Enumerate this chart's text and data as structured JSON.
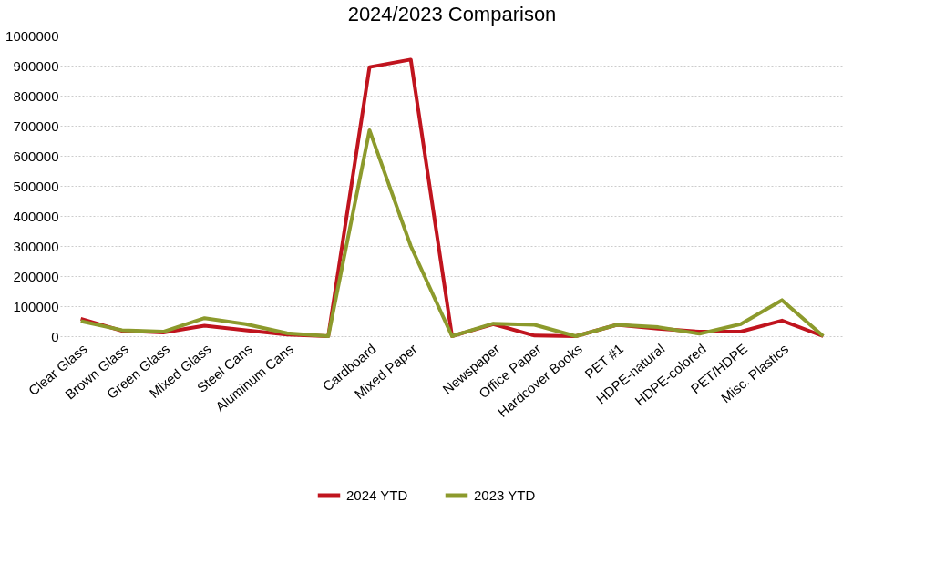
{
  "chart_data": {
    "type": "line",
    "title": "2024/2023 Comparison",
    "categories": [
      "Clear Glass",
      "Brown Glass",
      "Green Glass",
      "Mixed Glass",
      "Steel Cans",
      "Aluminum Cans",
      null,
      "Cardboard",
      "Mixed Paper",
      null,
      "Newspaper",
      "Office Paper",
      "Hardcover Books",
      "PET #1",
      "HDPE-natural",
      "HDPE-colored",
      "PET/HDPE",
      "Misc. Plastics",
      null
    ],
    "series": [
      {
        "name": "2024 YTD",
        "color": "#c0141e",
        "values": [
          58000,
          18000,
          12000,
          35000,
          20000,
          5000,
          0,
          895000,
          920000,
          0,
          40000,
          2000,
          0,
          38000,
          25000,
          15000,
          15000,
          52000,
          0
        ]
      },
      {
        "name": "2023 YTD",
        "color": "#8c9a2c",
        "values": [
          50000,
          20000,
          15000,
          60000,
          40000,
          10000,
          0,
          685000,
          300000,
          0,
          42000,
          38000,
          0,
          38000,
          30000,
          8000,
          40000,
          120000,
          0
        ]
      }
    ],
    "ylim": [
      0,
      1000000
    ],
    "yticks": [
      0,
      100000,
      200000,
      300000,
      400000,
      500000,
      600000,
      700000,
      800000,
      900000,
      1000000
    ],
    "grid": "y",
    "legend": "bottom",
    "marker": "none",
    "line_style": "solid"
  }
}
